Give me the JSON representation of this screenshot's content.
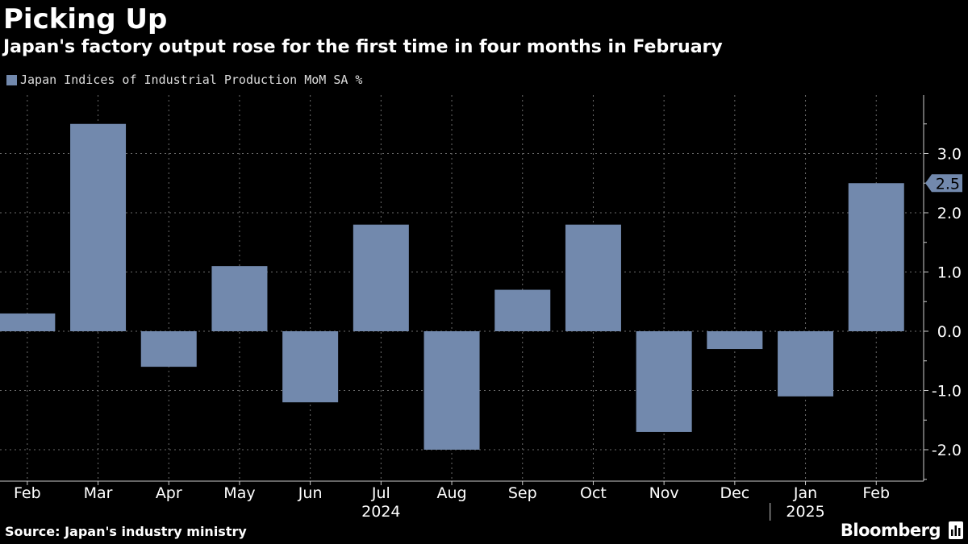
{
  "header": {
    "title": "Picking Up",
    "subtitle": "Japan's factory output rose for the first time in four months in February"
  },
  "legend": {
    "label": "Japan Indices of Industrial Production MoM SA %"
  },
  "footer": {
    "source": "Source: Japan's industry ministry",
    "brand": "Bloomberg"
  },
  "colors": {
    "background": "#000000",
    "bar": "#7289ad",
    "grid": "#6b6b6b",
    "text": "#ffffff"
  },
  "chart_data": {
    "type": "bar",
    "categories": [
      "Feb",
      "Mar",
      "Apr",
      "May",
      "Jun",
      "Jul",
      "Aug",
      "Sep",
      "Oct",
      "Nov",
      "Dec",
      "Jan",
      "Feb"
    ],
    "years": [
      "2024",
      "2025"
    ],
    "series": [
      {
        "name": "Japan Indices of Industrial Production MoM SA %",
        "values": [
          0.3,
          3.5,
          -0.6,
          1.1,
          -1.2,
          1.8,
          -2.0,
          0.7,
          1.8,
          -1.7,
          -0.3,
          -1.1,
          2.5
        ]
      }
    ],
    "yticks": [
      "-2.0",
      "-1.0",
      "0.0",
      "1.0",
      "2.0",
      "3.0"
    ],
    "ylim": [
      -2.5,
      4.0
    ],
    "last_value_label": "2.5",
    "grid": true,
    "y_axis_side": "right",
    "legend_position": "top-left"
  }
}
